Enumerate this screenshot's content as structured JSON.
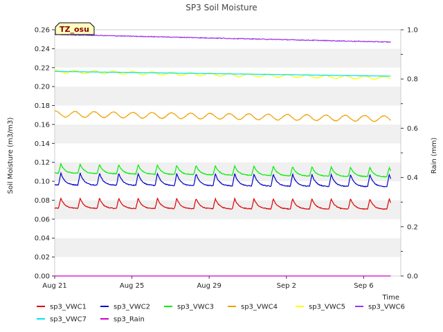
{
  "chart_data": {
    "type": "line",
    "title": "SP3 Soil Moisture",
    "site_label": "TZ_osu",
    "xlabel": "Time",
    "ylabel": "Soil Moisture (m3/m3)",
    "y2label": "Rain (mm)",
    "x_range": [
      "Aug 21",
      "Sep 7"
    ],
    "xticks": [
      "Aug 21",
      "Aug 25",
      "Aug 29",
      "Sep 2",
      "Sep 6"
    ],
    "ylim": [
      0.0,
      0.26
    ],
    "yticks": [
      "0.00",
      "0.02",
      "0.04",
      "0.06",
      "0.08",
      "0.10",
      "0.12",
      "0.14",
      "0.16",
      "0.18",
      "0.20",
      "0.22",
      "0.24",
      "0.26"
    ],
    "y2lim": [
      0.0,
      1.0
    ],
    "y2ticks": [
      "0.0",
      "0.2",
      "0.4",
      "0.6",
      "0.8",
      "1.0"
    ],
    "grid": "horizontal bands",
    "legend_position": "bottom",
    "series": [
      {
        "name": "sp3_VWC1",
        "color": "#dd0000",
        "axis": "left",
        "shape": "diurnal",
        "start": 0.073,
        "end": 0.072,
        "spike": 0.011
      },
      {
        "name": "sp3_VWC2",
        "color": "#0000cc",
        "axis": "left",
        "shape": "diurnal",
        "start": 0.098,
        "end": 0.096,
        "spike": 0.013
      },
      {
        "name": "sp3_VWC3",
        "color": "#00ee00",
        "axis": "left",
        "shape": "diurnal",
        "start": 0.11,
        "end": 0.106,
        "spike": 0.01
      },
      {
        "name": "sp3_VWC4",
        "color": "#f0a000",
        "axis": "left",
        "shape": "wave",
        "start": 0.171,
        "end": 0.166,
        "amp": 0.003
      },
      {
        "name": "sp3_VWC5",
        "color": "#ffff00",
        "axis": "left",
        "shape": "wave",
        "start": 0.216,
        "end": 0.209,
        "amp": 0.0015
      },
      {
        "name": "sp3_VWC6",
        "color": "#9933ee",
        "axis": "left",
        "shape": "flat",
        "start": 0.255,
        "end": 0.247,
        "amp": 0.0004
      },
      {
        "name": "sp3_VWC7",
        "color": "#00e5ee",
        "axis": "left",
        "shape": "flat",
        "start": 0.216,
        "end": 0.211,
        "amp": 0.0002
      },
      {
        "name": "sp3_Rain",
        "color": "#cc00cc",
        "axis": "right",
        "shape": "zero",
        "start": 0.0,
        "end": 0.0,
        "amp": 0.0
      }
    ]
  }
}
